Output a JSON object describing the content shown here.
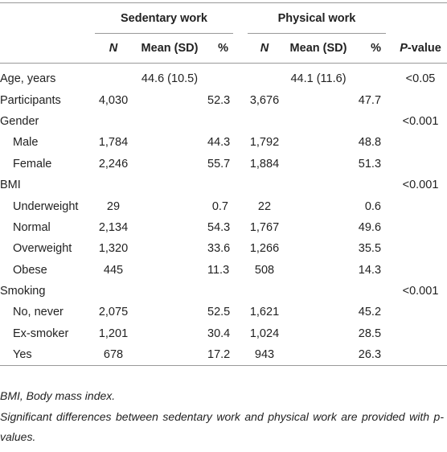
{
  "table": {
    "group_headers": [
      "Sedentary work",
      "Physical work"
    ],
    "columns": [
      "N",
      "Mean (SD)",
      "%",
      "N",
      "Mean (SD)",
      "%",
      "P-value"
    ],
    "rows": [
      {
        "label": "Age, years",
        "cells": [
          null,
          "44.6 (10.5)",
          null,
          null,
          "44.1 (11.6)",
          null,
          "<0.05"
        ]
      },
      {
        "label": "Participants",
        "cells": [
          "4,030",
          null,
          "52.3",
          "3,676",
          null,
          "47.7",
          null
        ]
      },
      {
        "label": "Gender",
        "cells": [
          null,
          null,
          null,
          null,
          null,
          null,
          "<0.001"
        ]
      },
      {
        "label": "Male",
        "sub": true,
        "cells": [
          "1,784",
          null,
          "44.3",
          "1,792",
          null,
          "48.8",
          null
        ]
      },
      {
        "label": "Female",
        "sub": true,
        "cells": [
          "2,246",
          null,
          "55.7",
          "1,884",
          null,
          "51.3",
          null
        ]
      },
      {
        "label": "BMI",
        "cells": [
          null,
          null,
          null,
          null,
          null,
          null,
          "<0.001"
        ]
      },
      {
        "label": "Underweight",
        "sub": true,
        "cells": [
          "29",
          null,
          "0.7",
          "22",
          null,
          "0.6",
          null
        ]
      },
      {
        "label": "Normal",
        "sub": true,
        "cells": [
          "2,134",
          null,
          "54.3",
          "1,767",
          null,
          "49.6",
          null
        ]
      },
      {
        "label": "Overweight",
        "sub": true,
        "cells": [
          "1,320",
          null,
          "33.6",
          "1,266",
          null,
          "35.5",
          null
        ]
      },
      {
        "label": "Obese",
        "sub": true,
        "cells": [
          "445",
          null,
          "11.3",
          "508",
          null,
          "14.3",
          null
        ]
      },
      {
        "label": "Smoking",
        "cells": [
          null,
          null,
          null,
          null,
          null,
          null,
          "<0.001"
        ]
      },
      {
        "label": "No, never",
        "sub": true,
        "cells": [
          "2,075",
          null,
          "52.5",
          "1,621",
          null,
          "45.2",
          null
        ]
      },
      {
        "label": "Ex-smoker",
        "sub": true,
        "cells": [
          "1,201",
          null,
          "30.4",
          "1,024",
          null,
          "28.5",
          null
        ]
      },
      {
        "label": "Yes",
        "sub": true,
        "cells": [
          "678",
          null,
          "17.2",
          "943",
          null,
          "26.3",
          null
        ]
      }
    ],
    "footnotes": [
      "BMI, Body mass index.",
      "Significant differences between sedentary work and physical work are provided with p-values."
    ]
  }
}
